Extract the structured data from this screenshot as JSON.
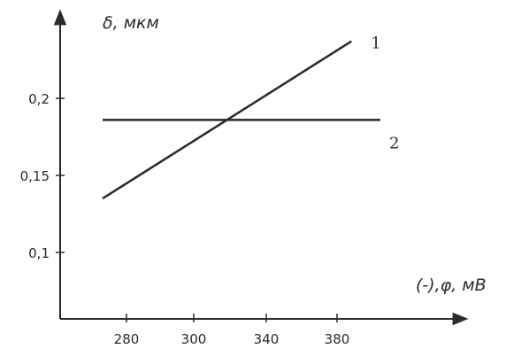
{
  "chart_data": {
    "type": "line",
    "title": "",
    "xlabel": "(-),φ, мВ",
    "ylabel": "δ, мкм",
    "x_ticks": [
      {
        "value": 280,
        "label": "280"
      },
      {
        "value": 300,
        "label": "300"
      },
      {
        "value": 340,
        "label": "340"
      },
      {
        "value": 380,
        "label": "380"
      }
    ],
    "y_ticks": [
      {
        "value": 0.1,
        "label": "0,1"
      },
      {
        "value": 0.15,
        "label": "0,15"
      },
      {
        "value": 0.2,
        "label": "0,2"
      }
    ],
    "series": [
      {
        "name": "1",
        "x": [
          270,
          390
        ],
        "values": [
          0.135,
          0.237
        ]
      },
      {
        "name": "2",
        "x": [
          270,
          410
        ],
        "values": [
          0.186,
          0.186
        ]
      }
    ],
    "grid": false,
    "colors": {
      "line": "#2a2a2a",
      "axis": "#2a2a2a"
    }
  }
}
